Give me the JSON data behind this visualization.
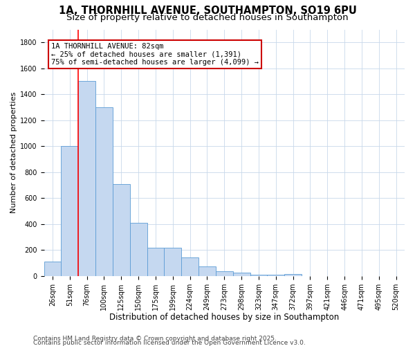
{
  "title": "1A, THORNHILL AVENUE, SOUTHAMPTON, SO19 6PU",
  "subtitle": "Size of property relative to detached houses in Southampton",
  "xlabel": "Distribution of detached houses by size in Southampton",
  "ylabel": "Number of detached properties",
  "categories": [
    "26sqm",
    "51sqm",
    "76sqm",
    "100sqm",
    "125sqm",
    "150sqm",
    "175sqm",
    "199sqm",
    "224sqm",
    "249sqm",
    "273sqm",
    "298sqm",
    "323sqm",
    "347sqm",
    "372sqm",
    "397sqm",
    "421sqm",
    "446sqm",
    "471sqm",
    "495sqm",
    "520sqm"
  ],
  "values": [
    110,
    1000,
    1500,
    1300,
    710,
    410,
    215,
    215,
    140,
    75,
    35,
    25,
    10,
    10,
    15,
    0,
    0,
    0,
    0,
    0,
    0
  ],
  "bar_color": "#c5d8f0",
  "bar_edge_color": "#5b9bd5",
  "red_line_index": 2,
  "annotation_title": "1A THORNHILL AVENUE: 82sqm",
  "annotation_line1": "← 25% of detached houses are smaller (1,391)",
  "annotation_line2": "75% of semi-detached houses are larger (4,099) →",
  "annotation_box_edge": "#cc0000",
  "ylim": [
    0,
    1900
  ],
  "yticks": [
    0,
    200,
    400,
    600,
    800,
    1000,
    1200,
    1400,
    1600,
    1800
  ],
  "footer1": "Contains HM Land Registry data © Crown copyright and database right 2025.",
  "footer2": "Contains public sector information licensed under the Open Government Licence v3.0.",
  "background_color": "#ffffff",
  "grid_color": "#c8d8ea",
  "title_fontsize": 10.5,
  "subtitle_fontsize": 9.5,
  "ylabel_fontsize": 8,
  "xlabel_fontsize": 8.5,
  "tick_fontsize": 7,
  "footer_fontsize": 6.5
}
